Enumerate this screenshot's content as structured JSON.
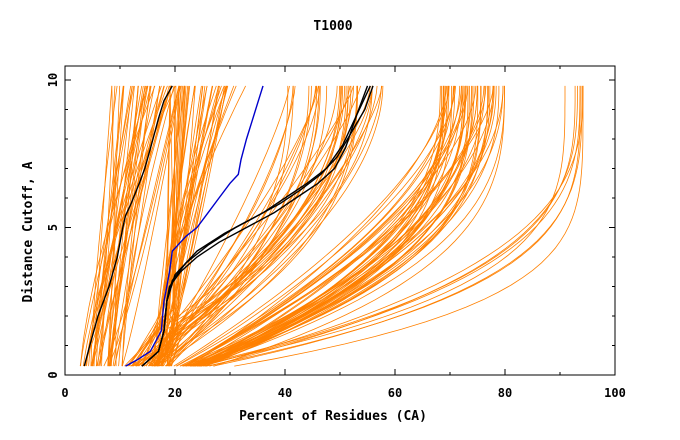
{
  "chart_data": {
    "type": "line",
    "title": "T1000",
    "xlabel": "Percent of Residues (CA)",
    "ylabel": "Distance Cutoff, A",
    "xlim": [
      0,
      100
    ],
    "ylim": [
      0,
      10
    ],
    "x_ticks": [
      0,
      20,
      40,
      60,
      80,
      100
    ],
    "y_ticks": [
      0,
      5,
      10
    ],
    "x_tick_labels": [
      "0",
      "20",
      "40",
      "60",
      "80",
      "100"
    ],
    "y_tick_labels": [
      "0",
      "5",
      "10"
    ],
    "grid": false,
    "legend": "none",
    "colors": {
      "ensemble": "#ff8000",
      "black": "#000000",
      "blue": "#0000cc",
      "axis": "#000000"
    },
    "series": [
      {
        "name": "highlight-black-left",
        "color": "#000000",
        "x": [
          3.5,
          4.5,
          6,
          8,
          9.5,
          10.5,
          11,
          12,
          13.5,
          14.5,
          16,
          17,
          18,
          19.5
        ],
        "y": [
          0.3,
          1.0,
          2.0,
          3.0,
          4.0,
          5.0,
          5.4,
          5.8,
          6.5,
          7.0,
          8.0,
          8.7,
          9.3,
          9.8
        ]
      },
      {
        "name": "highlight-blue",
        "color": "#0000cc",
        "x": [
          11,
          13,
          15.5,
          17.5,
          18,
          18.5,
          19,
          19.5,
          20.5,
          22,
          24,
          26,
          28,
          30,
          31.5,
          32,
          33,
          34,
          35,
          36
        ],
        "y": [
          0.3,
          0.5,
          0.8,
          1.5,
          2.5,
          3.0,
          3.5,
          4.2,
          4.4,
          4.7,
          5.0,
          5.5,
          6.0,
          6.5,
          6.8,
          7.3,
          8.0,
          8.6,
          9.2,
          9.8
        ]
      },
      {
        "name": "highlight-black-mid-1",
        "color": "#000000",
        "x": [
          14,
          17,
          18,
          18.5,
          19,
          21,
          24,
          28,
          33,
          38,
          42,
          46,
          49,
          51,
          53,
          55
        ],
        "y": [
          0.3,
          0.8,
          1.5,
          2.5,
          3.0,
          3.5,
          4.0,
          4.5,
          5.0,
          5.5,
          6.0,
          6.5,
          7.0,
          7.7,
          8.8,
          9.8
        ]
      },
      {
        "name": "highlight-black-mid-2",
        "color": "#000000",
        "x": [
          14,
          17,
          18,
          18.5,
          19.5,
          22,
          26,
          31,
          36,
          40,
          44,
          47.5,
          50.5,
          53,
          55.5
        ],
        "y": [
          0.3,
          0.8,
          1.5,
          2.5,
          3.2,
          3.8,
          4.4,
          5.0,
          5.5,
          6.0,
          6.5,
          7.0,
          7.8,
          8.8,
          9.8
        ]
      },
      {
        "name": "highlight-black-mid-3",
        "color": "#000000",
        "x": [
          14,
          17,
          18,
          18.5,
          20,
          24,
          29,
          34,
          39,
          43,
          46.5,
          49.5,
          52,
          54.5,
          56
        ],
        "y": [
          0.3,
          0.8,
          1.5,
          2.5,
          3.4,
          4.2,
          4.8,
          5.3,
          5.8,
          6.3,
          6.8,
          7.4,
          8.2,
          9.0,
          9.8
        ]
      }
    ]
  }
}
